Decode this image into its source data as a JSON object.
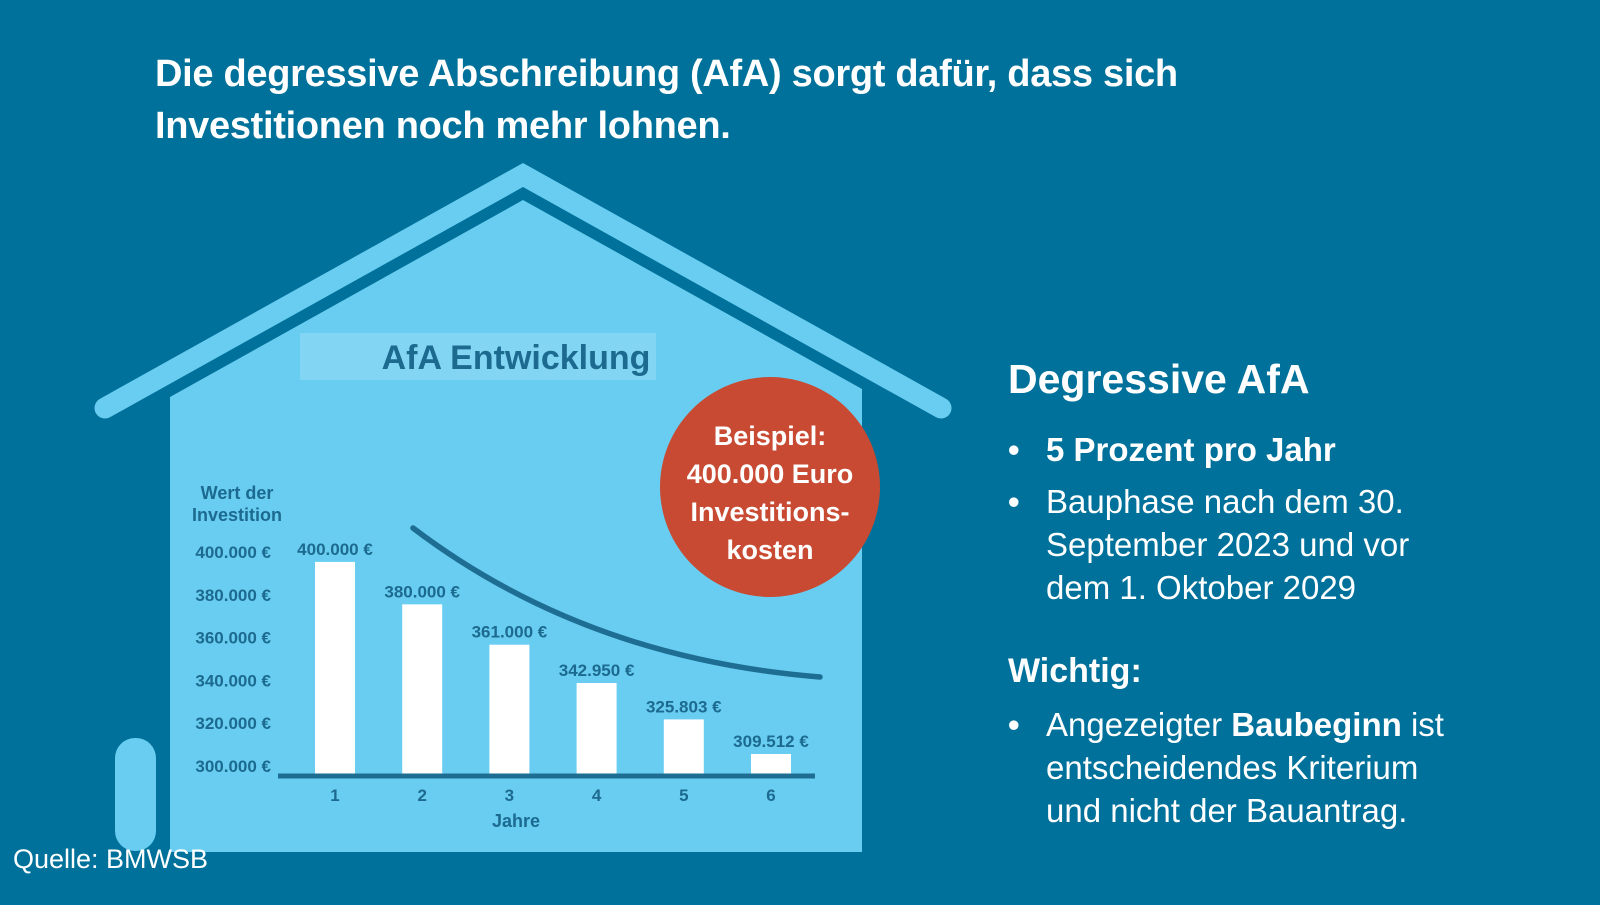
{
  "title": {
    "lines": [
      "Die degressive Abschreibung (AfA) sorgt dafür, dass sich",
      "Investitionen noch mehr lohnen."
    ]
  },
  "source": "Quelle: BMWSB",
  "badge": {
    "lines": [
      "Beispiel:",
      "400.000 Euro",
      "Investitions-",
      "kosten"
    ]
  },
  "chart_data": {
    "type": "bar",
    "title": "AfA Entwicklung",
    "categories": [
      "1",
      "2",
      "3",
      "4",
      "5",
      "6"
    ],
    "values": [
      400000,
      380000,
      361000,
      342950,
      325803,
      309512
    ],
    "bar_labels": [
      "400.000 €",
      "380.000 €",
      "361.000 €",
      "342.950 €",
      "325.803 €",
      "309.512 €"
    ],
    "y_ticks": [
      "400.000 €",
      "380.000 €",
      "360.000 €",
      "340.000 €",
      "320.000 €",
      "300.000 €"
    ],
    "ylabel": "Wert der Investition",
    "ylabel_lines": [
      "Wert der",
      "Investition"
    ],
    "xlabel": "Jahre",
    "ylim": [
      300000,
      400000
    ],
    "grid": false,
    "legend": "none",
    "annotation": "decreasing concave trend curve overlaid above the bars"
  },
  "right_panel": {
    "heading": "Degressive AfA",
    "bullet1": "5 Prozent pro Jahr",
    "bullet2_lines": [
      "Bauphase nach dem 30.",
      "September 2023 und vor",
      "dem 1. Oktober 2029"
    ],
    "wichtig_heading": "Wichtig:",
    "wichtig_bullet": {
      "prefix": "Angezeigter ",
      "bold": "Baubeginn",
      "suffix": " ist"
    },
    "wichtig_lines": [
      "entscheidendes Kriterium",
      "und nicht der Bauantrag."
    ],
    "bullet_glyph": "•"
  },
  "colors": {
    "background": "#00719A",
    "house": "#68CDF1",
    "badge": "#C84A32",
    "chart_ink": "#1C6A8F",
    "chart_line": "#1E6E93",
    "bar_fill": "#FFFFFF",
    "text": "#FFFFFF"
  }
}
